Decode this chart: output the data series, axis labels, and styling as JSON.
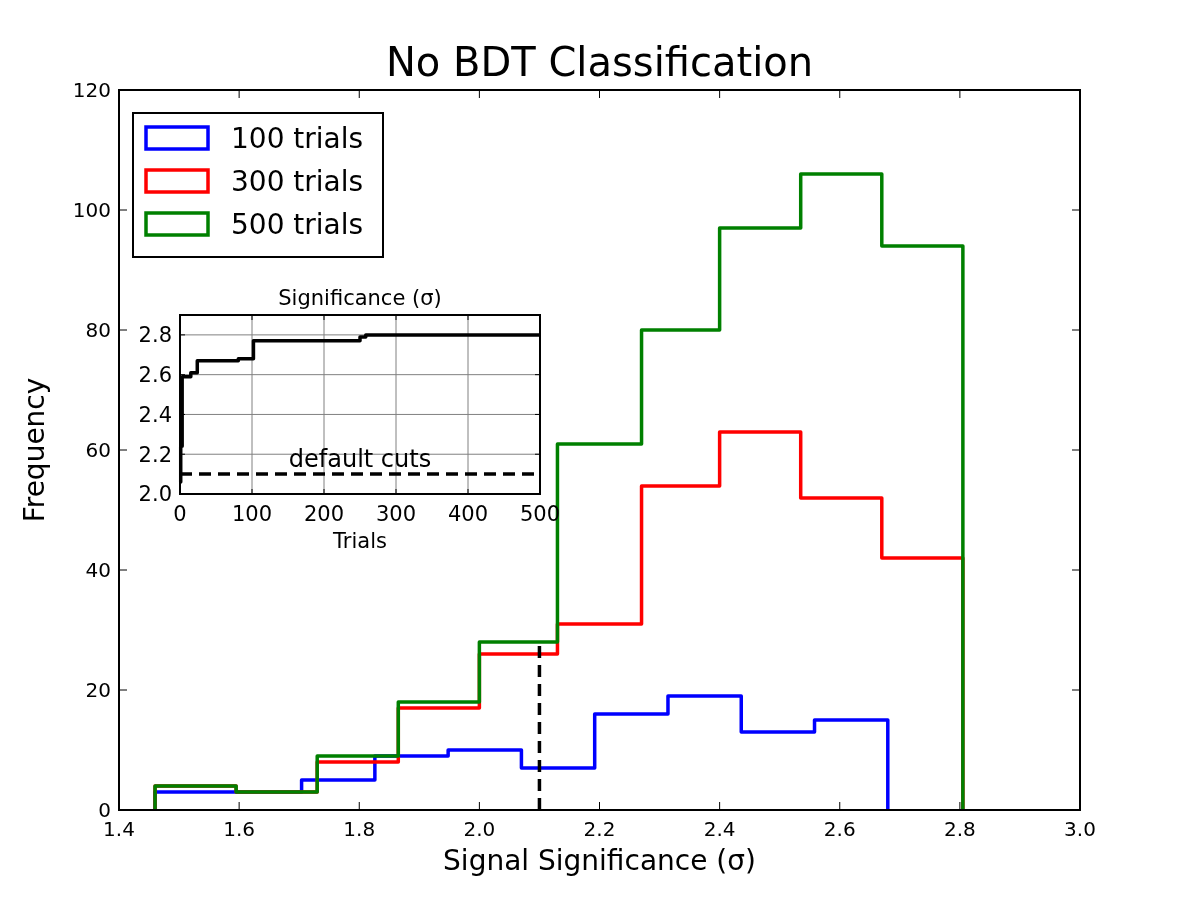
{
  "chart_data": [
    {
      "type": "histogram",
      "title": "No BDT Classification",
      "xlabel": "Signal Significance (σ)",
      "ylabel": "Frequency",
      "xlim": [
        1.4,
        3.0
      ],
      "xticks": [
        1.4,
        1.6,
        1.8,
        {
          "value": 2.0,
          "label": "2.0"
        },
        2.2,
        2.4,
        2.6,
        2.8,
        {
          "value": 3.0,
          "label": "3.0"
        }
      ],
      "ylim": [
        0,
        120
      ],
      "yticks": [
        0,
        20,
        40,
        60,
        80,
        100,
        120
      ],
      "grid": false,
      "legend": "top left",
      "series": [
        {
          "name": "100 trials",
          "color": "#0000ff",
          "bins": [
            1.46,
            1.582,
            1.704,
            1.826,
            1.948,
            2.07,
            2.192,
            2.314,
            2.436,
            2.558,
            2.68
          ],
          "values": [
            3,
            3,
            5,
            9,
            10,
            7,
            16,
            19,
            13,
            15
          ]
        },
        {
          "name": "300 trials",
          "color": "#ff0000",
          "bins": [
            1.46,
            1.595,
            1.73,
            1.865,
            2.0,
            2.13,
            2.27,
            2.4,
            2.535,
            2.67,
            2.805
          ],
          "values": [
            4,
            3,
            8,
            17,
            26,
            31,
            54,
            63,
            52,
            42
          ]
        },
        {
          "name": "500 trials",
          "color": "#008000",
          "bins": [
            1.46,
            1.595,
            1.73,
            1.865,
            2.0,
            2.13,
            2.27,
            2.4,
            2.535,
            2.67,
            2.805
          ],
          "values": [
            4,
            3,
            9,
            18,
            28,
            61,
            80,
            97,
            106,
            94
          ]
        },
        {
          "type": "line",
          "color": "#000000",
          "line_style": "dashed",
          "x": [
            2.1,
            2.1
          ],
          "values": [
            0,
            28
          ]
        }
      ]
    },
    {
      "type": "step",
      "title": "Significance (σ)",
      "xlabel": "Trials",
      "xlim": [
        0,
        500
      ],
      "xticks": [
        0,
        100,
        200,
        300,
        400,
        500
      ],
      "ylim": [
        2.0,
        2.9
      ],
      "yticks": [
        {
          "value": 2.0,
          "label": "2.0"
        },
        2.2,
        2.4,
        2.6,
        2.8
      ],
      "grid": true,
      "series": [
        {
          "color": "#000000",
          "x": [
            0,
            1,
            3,
            15,
            24,
            81,
            102,
            250,
            258,
            500
          ],
          "values": [
            2.06,
            2.24,
            2.59,
            2.61,
            2.67,
            2.68,
            2.77,
            2.79,
            2.8,
            2.8
          ]
        }
      ],
      "ref_lines": [
        {
          "axis": "y",
          "value": 2.1,
          "label": "default cuts",
          "color": "#000000",
          "line_style": "dashed"
        }
      ]
    }
  ]
}
